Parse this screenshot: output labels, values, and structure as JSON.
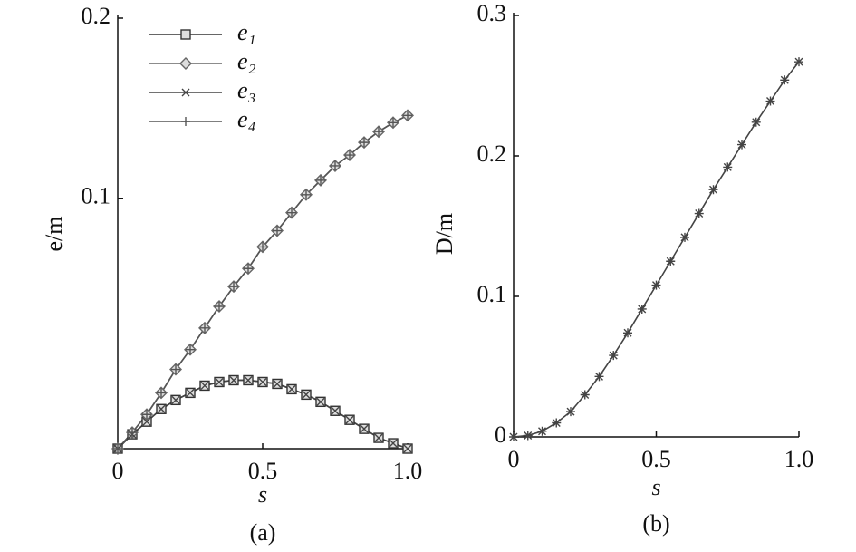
{
  "chart_data": [
    {
      "type": "line",
      "panel_label": "(a)",
      "xlabel": "s",
      "ylabel": "e/m",
      "x": [
        0,
        0.05,
        0.1,
        0.15,
        0.2,
        0.25,
        0.3,
        0.35,
        0.4,
        0.45,
        0.5,
        0.55,
        0.6,
        0.65,
        0.7,
        0.75,
        0.8,
        0.85,
        0.9,
        0.95,
        1
      ],
      "xlim": [
        0,
        1
      ],
      "xticks": [
        0,
        0.5,
        {
          "value": 1,
          "label": "1.0"
        }
      ],
      "ylim": [
        -0.039,
        0.2
      ],
      "yticks": [
        0.1,
        0.2
      ],
      "legend": "upper left",
      "series": [
        {
          "name": "e₁",
          "color": "#333333",
          "marker": "square",
          "values": [
            -0.039,
            -0.031,
            -0.024,
            -0.017,
            -0.012,
            -0.008,
            -0.004,
            -0.002,
            -0.001,
            -0.001,
            -0.002,
            -0.003,
            -0.006,
            -0.009,
            -0.013,
            -0.018,
            -0.023,
            -0.028,
            -0.033,
            -0.036,
            -0.039
          ]
        },
        {
          "name": "e₂",
          "color": "#666666",
          "marker": "diamond",
          "values": [
            -0.039,
            -0.03,
            -0.02,
            -0.008,
            0.005,
            0.016,
            0.028,
            0.04,
            0.051,
            0.061,
            0.073,
            0.082,
            0.092,
            0.102,
            0.11,
            0.118,
            0.124,
            0.131,
            0.137,
            0.142,
            0.146
          ]
        },
        {
          "name": "e₃",
          "color": "#444444",
          "marker": "x",
          "values": [
            -0.039,
            -0.031,
            -0.024,
            -0.017,
            -0.012,
            -0.008,
            -0.004,
            -0.002,
            -0.001,
            -0.001,
            -0.002,
            -0.003,
            -0.006,
            -0.009,
            -0.013,
            -0.018,
            -0.023,
            -0.028,
            -0.033,
            -0.036,
            -0.039
          ]
        },
        {
          "name": "e₄",
          "color": "#555555",
          "marker": "plus",
          "values": [
            -0.039,
            -0.03,
            -0.02,
            -0.008,
            0.005,
            0.016,
            0.028,
            0.04,
            0.051,
            0.061,
            0.073,
            0.082,
            0.092,
            0.102,
            0.11,
            0.118,
            0.124,
            0.131,
            0.137,
            0.142,
            0.146
          ]
        }
      ]
    },
    {
      "type": "line",
      "panel_label": "(b)",
      "xlabel": "s",
      "ylabel": "D/m",
      "x": [
        0,
        0.05,
        0.1,
        0.15,
        0.2,
        0.25,
        0.3,
        0.35,
        0.4,
        0.45,
        0.5,
        0.55,
        0.6,
        0.65,
        0.7,
        0.75,
        0.8,
        0.85,
        0.9,
        0.95,
        1
      ],
      "xlim": [
        0,
        1
      ],
      "xticks": [
        0,
        0.5,
        {
          "value": 1,
          "label": "1.0"
        }
      ],
      "ylim": [
        0,
        0.3
      ],
      "yticks": [
        0,
        0.1,
        0.2,
        0.3
      ],
      "series": [
        {
          "color": "#444444",
          "marker": "asterisk",
          "values": [
            0,
            0.001,
            0.004,
            0.01,
            0.018,
            0.03,
            0.043,
            0.058,
            0.074,
            0.091,
            0.108,
            0.125,
            0.142,
            0.159,
            0.176,
            0.192,
            0.208,
            0.224,
            0.239,
            0.254,
            0.267
          ]
        }
      ]
    }
  ]
}
